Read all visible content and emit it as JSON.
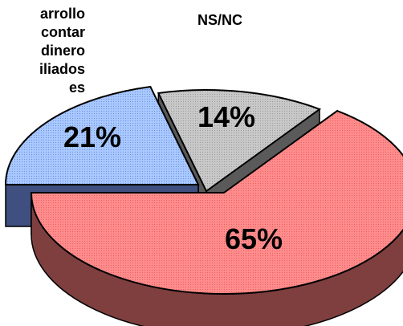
{
  "chart_data": {
    "type": "pie",
    "style": "3d-exploded",
    "slices": [
      {
        "label_lines": [
          "arrollo",
          "contar",
          "dinero",
          "iliados",
          "es"
        ],
        "value": 21,
        "percent_label": "21%",
        "top_color": "#99ccff",
        "side_color": "#3f4f7f"
      },
      {
        "label_lines": [
          "NS/NC"
        ],
        "value": 14,
        "percent_label": "14%",
        "top_color": "#c0c0c0",
        "side_color": "#5a5a5a"
      },
      {
        "label_lines": [],
        "value": 65,
        "percent_label": "65%",
        "top_color": "#ff7f7f",
        "side_color": "#7f3f3f"
      }
    ],
    "legend_position": "outside-labels"
  }
}
